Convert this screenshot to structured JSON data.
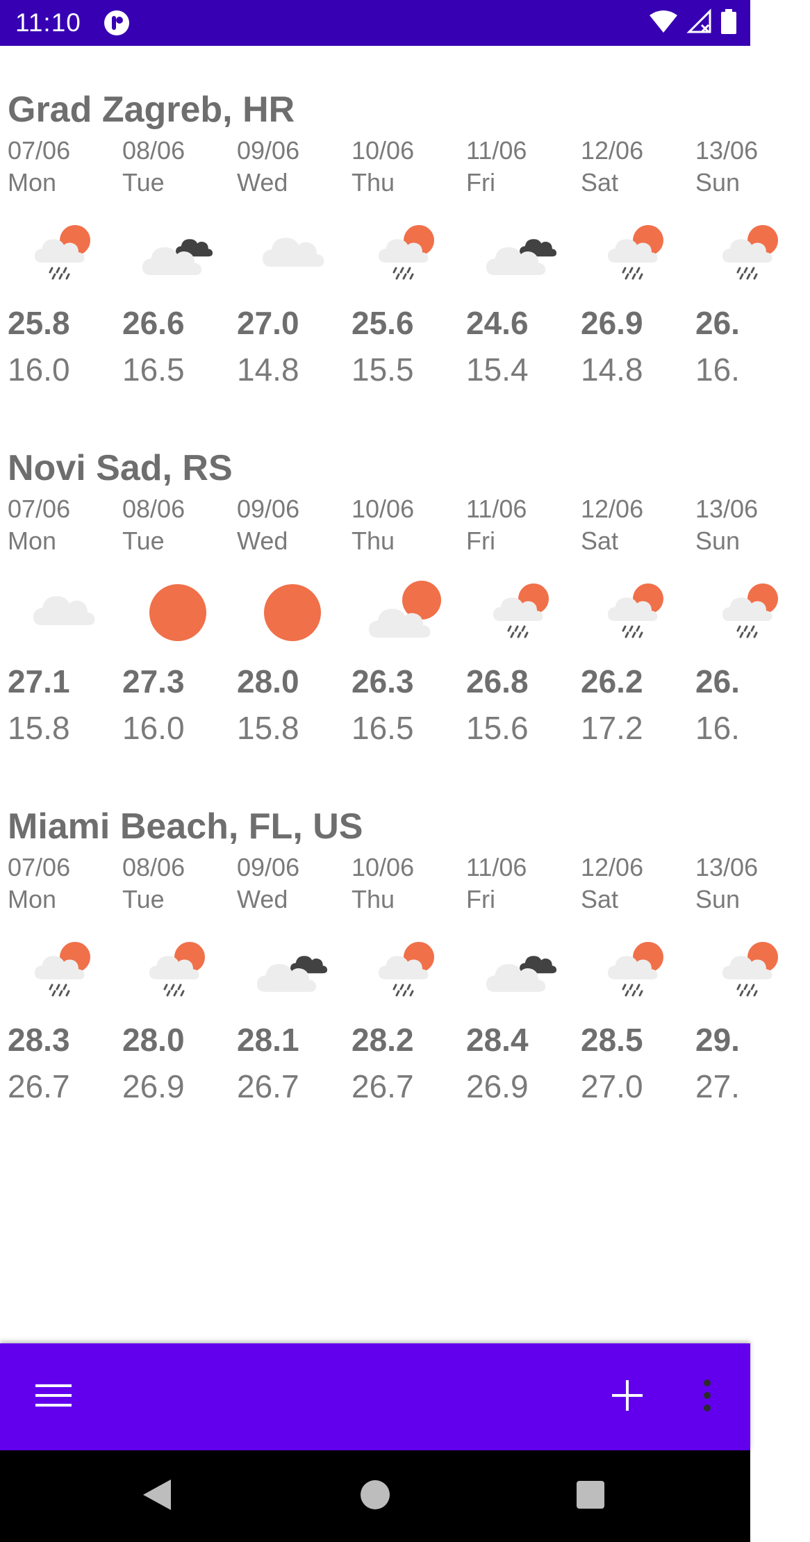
{
  "status_bar": {
    "time": "11:10"
  },
  "colors": {
    "status_bar": "#3700b3",
    "bottom_bar": "#6200ee",
    "sun": "#f0704a",
    "cloud_light": "#ededed",
    "cloud_dark": "#424242",
    "text": "#7a7a7a"
  },
  "cities": [
    {
      "name": "Grad Zagreb, HR",
      "days": [
        {
          "date": "07/06",
          "day": "Mon",
          "icon": "rain-sun-icon",
          "max": "25.8",
          "min": "16.0"
        },
        {
          "date": "08/06",
          "day": "Tue",
          "icon": "dark-clouds-icon",
          "max": "26.6",
          "min": "16.5"
        },
        {
          "date": "09/06",
          "day": "Wed",
          "icon": "cloud-icon",
          "max": "27.0",
          "min": "14.8"
        },
        {
          "date": "10/06",
          "day": "Thu",
          "icon": "rain-sun-icon",
          "max": "25.6",
          "min": "15.5"
        },
        {
          "date": "11/06",
          "day": "Fri",
          "icon": "dark-clouds-icon",
          "max": "24.6",
          "min": "15.4"
        },
        {
          "date": "12/06",
          "day": "Sat",
          "icon": "rain-sun-icon",
          "max": "26.9",
          "min": "14.8"
        },
        {
          "date": "13/06",
          "day": "Sun",
          "icon": "rain-sun-icon",
          "max": "26.",
          "min": "16."
        }
      ]
    },
    {
      "name": "Novi Sad, RS",
      "days": [
        {
          "date": "07/06",
          "day": "Mon",
          "icon": "cloud-icon",
          "max": "27.1",
          "min": "15.8"
        },
        {
          "date": "08/06",
          "day": "Tue",
          "icon": "sun-icon",
          "max": "27.3",
          "min": "16.0"
        },
        {
          "date": "09/06",
          "day": "Wed",
          "icon": "sun-icon",
          "max": "28.0",
          "min": "15.8"
        },
        {
          "date": "10/06",
          "day": "Thu",
          "icon": "partly-sunny-icon",
          "max": "26.3",
          "min": "16.5"
        },
        {
          "date": "11/06",
          "day": "Fri",
          "icon": "rain-sun-icon",
          "max": "26.8",
          "min": "15.6"
        },
        {
          "date": "12/06",
          "day": "Sat",
          "icon": "rain-sun-icon",
          "max": "26.2",
          "min": "17.2"
        },
        {
          "date": "13/06",
          "day": "Sun",
          "icon": "rain-sun-icon",
          "max": "26.",
          "min": "16."
        }
      ]
    },
    {
      "name": "Miami Beach, FL, US",
      "days": [
        {
          "date": "07/06",
          "day": "Mon",
          "icon": "rain-sun-icon",
          "max": "28.3",
          "min": "26.7"
        },
        {
          "date": "08/06",
          "day": "Tue",
          "icon": "rain-sun-icon",
          "max": "28.0",
          "min": "26.9"
        },
        {
          "date": "09/06",
          "day": "Wed",
          "icon": "dark-clouds-icon",
          "max": "28.1",
          "min": "26.7"
        },
        {
          "date": "10/06",
          "day": "Thu",
          "icon": "rain-sun-icon",
          "max": "28.2",
          "min": "26.7"
        },
        {
          "date": "11/06",
          "day": "Fri",
          "icon": "dark-clouds-icon",
          "max": "28.4",
          "min": "26.9"
        },
        {
          "date": "12/06",
          "day": "Sat",
          "icon": "rain-sun-icon",
          "max": "28.5",
          "min": "27.0"
        },
        {
          "date": "13/06",
          "day": "Sun",
          "icon": "rain-sun-icon",
          "max": "29.",
          "min": "27."
        }
      ]
    }
  ],
  "bottom_bar": {
    "left_icon": "menu-icon",
    "right_icons": [
      "add-icon",
      "more-vert-icon"
    ]
  },
  "nav_bar": {
    "icons": [
      "back-icon",
      "home-icon",
      "recents-icon"
    ]
  }
}
